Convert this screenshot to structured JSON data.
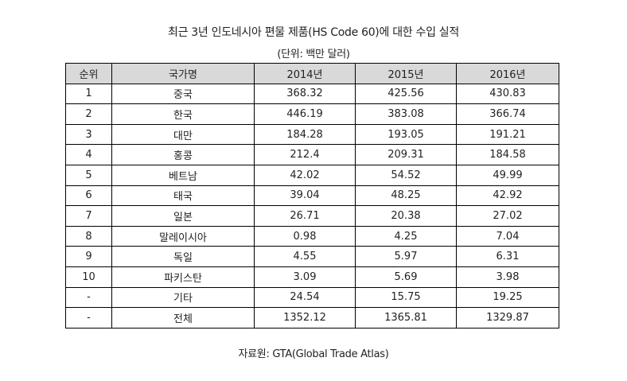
{
  "title": "최근 3년 인도네시아 편물 제품(HS Code 60)에 대한 수입 실적",
  "unit_note": "(단위: 백만 달러)",
  "source": "자료원: GTA(Global Trade Atlas)",
  "table": {
    "headers": [
      "순위",
      "국가명",
      "2014년",
      "2015년",
      "2016년"
    ],
    "rows": [
      [
        "1",
        "중국",
        "368.32",
        "425.56",
        "430.83"
      ],
      [
        "2",
        "한국",
        "446.19",
        "383.08",
        "366.74"
      ],
      [
        "3",
        "대만",
        "184.28",
        "193.05",
        "191.21"
      ],
      [
        "4",
        "홍콩",
        "212.4",
        "209.31",
        "184.58"
      ],
      [
        "5",
        "베트남",
        "42.02",
        "54.52",
        "49.99"
      ],
      [
        "6",
        "태국",
        "39.04",
        "48.25",
        "42.92"
      ],
      [
        "7",
        "일본",
        "26.71",
        "20.38",
        "27.02"
      ],
      [
        "8",
        "말레이시아",
        "0.98",
        "4.25",
        "7.04"
      ],
      [
        "9",
        "독일",
        "4.55",
        "5.97",
        "6.31"
      ],
      [
        "10",
        "파키스탄",
        "3.09",
        "5.69",
        "3.98"
      ],
      [
        "-",
        "기타",
        "24.54",
        "15.75",
        "19.25"
      ],
      [
        "-",
        "전체",
        "1352.12",
        "1365.81",
        "1329.87"
      ]
    ]
  }
}
